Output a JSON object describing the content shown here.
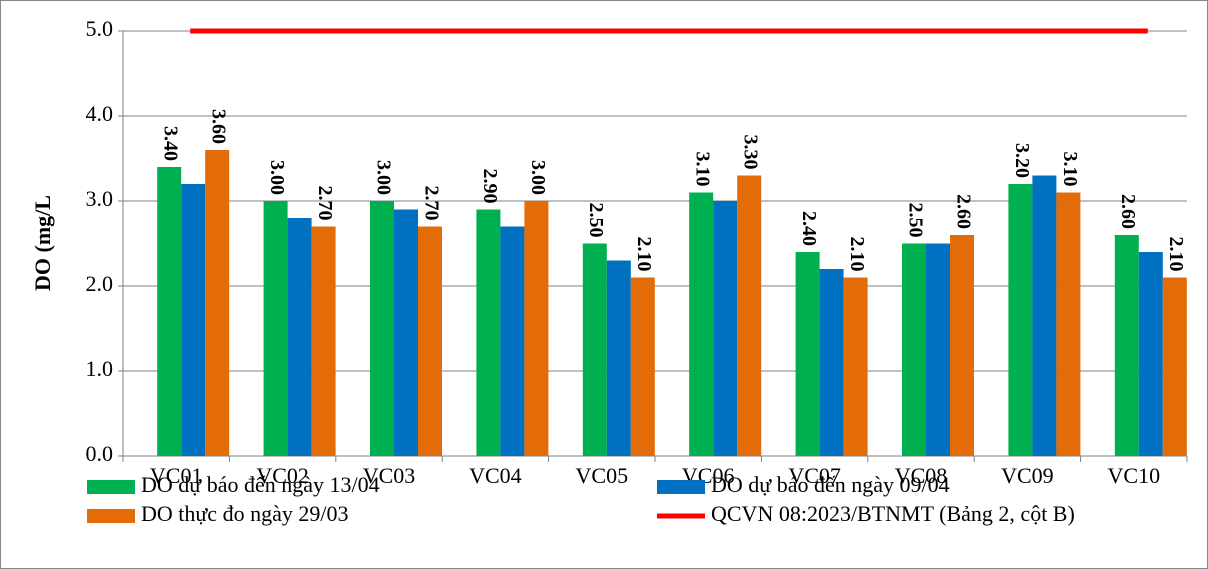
{
  "chart_data": {
    "type": "bar",
    "y_label": "DO (mg/L",
    "categories": [
      "VC01",
      "VC02",
      "VC03",
      "VC04",
      "VC05",
      "VC06",
      "VC07",
      "VC08",
      "VC09",
      "VC10"
    ],
    "series": [
      {
        "name": "DO dự báo đến ngày 13/04",
        "color": "#00b050",
        "values": [
          3.4,
          3.0,
          3.0,
          2.9,
          2.5,
          3.1,
          2.4,
          2.5,
          3.2,
          2.6
        ],
        "value_labels": [
          "3.40",
          "3.00",
          "3.00",
          "2.90",
          "2.50",
          "3.10",
          "2.40",
          "2.50",
          "3.20",
          "2.60"
        ]
      },
      {
        "name": "DO dự báo đến ngày 09/04",
        "color": "#0070c0",
        "values": [
          3.2,
          2.8,
          2.9,
          2.7,
          2.3,
          3.0,
          2.2,
          2.5,
          3.3,
          2.4
        ]
      },
      {
        "name": "DO thực đo ngày 29/03",
        "color": "#e36c09",
        "values": [
          3.6,
          2.7,
          2.7,
          3.0,
          2.1,
          3.3,
          2.1,
          2.6,
          3.1,
          2.1
        ],
        "value_labels": [
          "3.60",
          "2.70",
          "2.70",
          "3.00",
          "2.10",
          "3.30",
          "2.10",
          "2.60",
          "3.10",
          "2.10"
        ]
      },
      {
        "name": "QCVN 08:2023/BTNMT (Bảng 2, cột B)",
        "color": "#ff0000",
        "type": "line",
        "values": [
          5,
          5,
          5,
          5,
          5,
          5,
          5,
          5,
          5,
          5
        ]
      }
    ],
    "ylim": [
      0,
      5
    ],
    "yticks": [
      {
        "value": 0,
        "label": "0.0"
      },
      {
        "value": 1,
        "label": "1.0"
      },
      {
        "value": 2,
        "label": "2.0"
      },
      {
        "value": 3,
        "label": "3.0"
      },
      {
        "value": 4,
        "label": "4.0"
      },
      {
        "value": 5,
        "label": "5.0"
      }
    ],
    "grid": true
  }
}
